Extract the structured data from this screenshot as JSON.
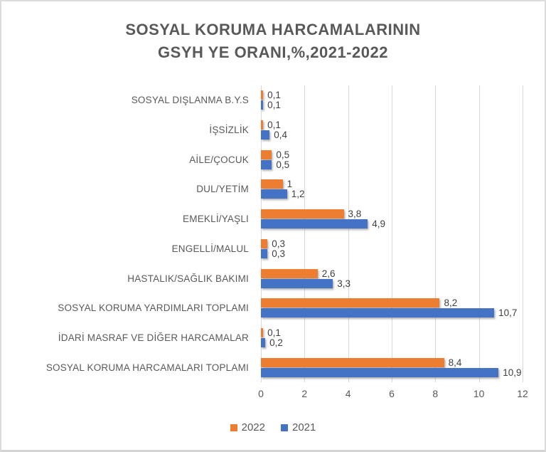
{
  "title": {
    "line1": "SOSYAL KORUMA HARCAMALARININ",
    "line2": "GSYH YE ORANI,%,2021-2022"
  },
  "colors": {
    "series_2022": "#ED7D31",
    "series_2021": "#4472C4",
    "gridline": "#D9D9D9",
    "title_text": "#595959",
    "axis_text": "#595959",
    "value_text": "#404040"
  },
  "chart_data": {
    "type": "bar",
    "orientation": "horizontal",
    "title": "SOSYAL KORUMA HARCAMALARININ GSYH YE ORANI,%,2021-2022",
    "categories": [
      "SOSYAL DIŞLANMA B.Y.S",
      "İŞSİZLİK",
      "AİLE/ÇOCUK",
      "DUL/YETİM",
      "EMEKLİ/YAŞLI",
      "ENGELLİ/MALUL",
      "HASTALIK/SAĞLIK BAKIMI",
      "SOSYAL KORUMA YARDIMLARI TOPLAMI",
      "İDARİ MASRAF VE DİĞER HARCAMALAR",
      "SOSYAL KORUMA HARCAMALARI TOPLAMI"
    ],
    "series": [
      {
        "name": "2022",
        "color": "#ED7D31",
        "values": [
          0.1,
          0.1,
          0.5,
          1,
          3.8,
          0.3,
          2.6,
          8.2,
          0.1,
          8.4
        ],
        "labels": [
          "0,1",
          "0,1",
          "0,5",
          "1",
          "3,8",
          "0,3",
          "2,6",
          "8,2",
          "0,1",
          "8,4"
        ]
      },
      {
        "name": "2021",
        "color": "#4472C4",
        "values": [
          0.1,
          0.4,
          0.5,
          1.2,
          4.9,
          0.3,
          3.3,
          10.7,
          0.2,
          10.9
        ],
        "labels": [
          "0,1",
          "0,4",
          "0,5",
          "1,2",
          "4,9",
          "0,3",
          "3,3",
          "10,7",
          "0,2",
          "10,9"
        ]
      }
    ],
    "xlim": [
      0,
      12
    ],
    "x_ticks": [
      "0",
      "2",
      "4",
      "6",
      "8",
      "10",
      "12"
    ],
    "grid": true,
    "legend_position": "bottom",
    "legend": [
      "2022",
      "2021"
    ]
  }
}
